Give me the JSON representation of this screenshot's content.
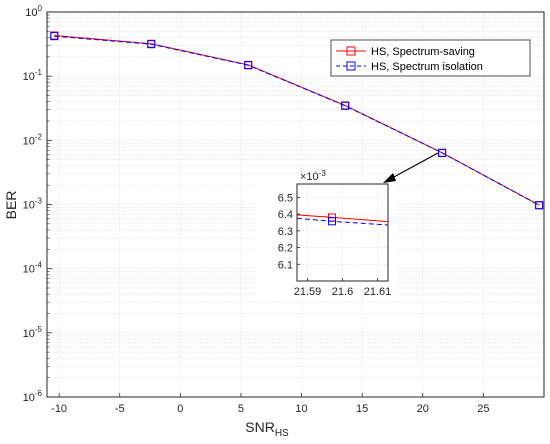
{
  "chart_data": {
    "type": "line",
    "xlabel": "SNR",
    "xlabel_sub": "HS",
    "ylabel": "BER",
    "yscale": "log",
    "xlim": [
      -11,
      30
    ],
    "ylim": [
      1e-06,
      1
    ],
    "xticks": [
      "-10",
      "-5",
      "0",
      "5",
      "10",
      "15",
      "20",
      "25"
    ],
    "xtick_values": [
      -10,
      -5,
      0,
      5,
      10,
      15,
      20,
      25
    ],
    "yticks": [
      {
        "base": "10",
        "exp": "0"
      },
      {
        "base": "10",
        "exp": "-1"
      },
      {
        "base": "10",
        "exp": "-2"
      },
      {
        "base": "10",
        "exp": "-3"
      },
      {
        "base": "10",
        "exp": "-4"
      },
      {
        "base": "10",
        "exp": "-5"
      },
      {
        "base": "10",
        "exp": "-6"
      }
    ],
    "grid": true,
    "legend_position": "top-right",
    "x": [
      -10.4,
      -2.4,
      5.6,
      13.6,
      21.6,
      29.6
    ],
    "series": [
      {
        "name": "HS, Spectrum-saving",
        "color": "#ff0000",
        "style": "solid",
        "marker": "square",
        "values": [
          0.43,
          0.32,
          0.15,
          0.035,
          0.0064,
          0.00098
        ]
      },
      {
        "name": "HS, Spectrum isolation",
        "color": "#0000ff",
        "style": "dashed",
        "marker": "square",
        "values": [
          0.42,
          0.315,
          0.148,
          0.0345,
          0.00636,
          0.00097
        ]
      }
    ],
    "inset": {
      "xlim": [
        21.587,
        21.613
      ],
      "ylim": [
        6.0,
        6.58
      ],
      "xticks": [
        "21.59",
        "21.6",
        "21.61"
      ],
      "xtick_values": [
        21.59,
        21.6,
        21.61
      ],
      "yticks": [
        "6.5",
        "6.4",
        "6.3",
        "6.2",
        "6.1"
      ],
      "ytick_values": [
        6.5,
        6.4,
        6.3,
        6.2,
        6.1
      ],
      "y_multiplier": {
        "base": "×10",
        "exp": "-3"
      },
      "series": [
        {
          "name": "HS, Spectrum-saving",
          "x": [
            21.587,
            21.597,
            21.613
          ],
          "values": [
            6.395,
            6.38,
            6.355
          ],
          "marker_at": 21.597
        },
        {
          "name": "HS, Spectrum isolation",
          "x": [
            21.587,
            21.597,
            21.613
          ],
          "values": [
            6.375,
            6.357,
            6.335
          ],
          "marker_at": 21.597
        }
      ]
    }
  }
}
